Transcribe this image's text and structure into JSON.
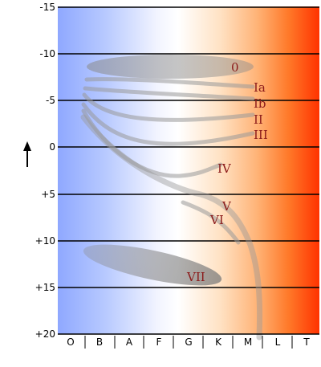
{
  "diagram": {
    "y_ticks": [
      "-15",
      "-10",
      "-5",
      "0",
      "+5",
      "+10",
      "+15",
      "+20"
    ],
    "y_values": [
      -15,
      -10,
      -5,
      0,
      5,
      10,
      15,
      20
    ],
    "spectral_classes": [
      "O",
      "B",
      "A",
      "F",
      "G",
      "K",
      "M",
      "L",
      "T"
    ],
    "luminosity_classes": {
      "zero": "0",
      "ia": "Ia",
      "ib": "Ib",
      "ii": "II",
      "iii": "III",
      "iv": "IV",
      "v": "V",
      "vi": "VI",
      "vii": "VII"
    },
    "colors": {
      "hot_blue": "#8fa8ff",
      "white": "#ffffff",
      "orange": "#ffb070",
      "red": "#ff3a00",
      "band_gray": "#9a9a9a",
      "label_red": "#8b1a1a"
    }
  }
}
